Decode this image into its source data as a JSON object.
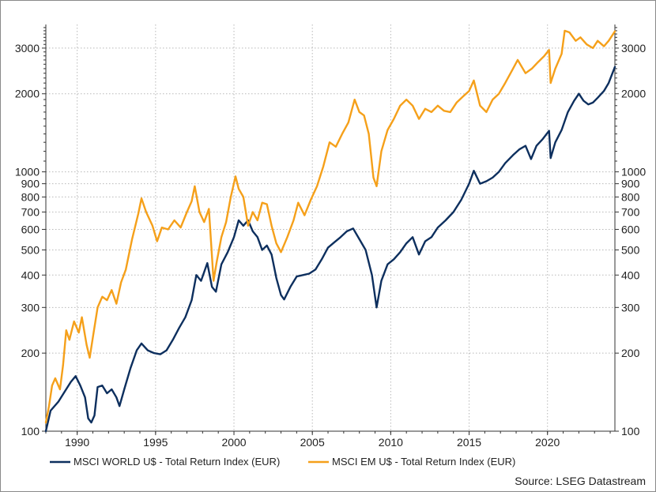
{
  "chart_data": {
    "type": "line",
    "title": "",
    "xlabel": "",
    "ylabel": "",
    "y_scale": "log",
    "xlim": [
      1988.0,
      2024.3
    ],
    "ylim": [
      100,
      3700
    ],
    "grid": true,
    "x_ticks": [
      "1990",
      "1995",
      "2000",
      "2005",
      "2010",
      "2015",
      "2020"
    ],
    "y_ticks": [
      "100",
      "200",
      "300",
      "400",
      "500",
      "600",
      "700",
      "800",
      "900",
      "1000",
      "2000",
      "3000"
    ],
    "legend_position": "bottom-left",
    "series": [
      {
        "name": "MSCI WORLD U$ - Total Return Index (EUR)",
        "color": "#0d2f5e",
        "points": [
          [
            1988.0,
            100
          ],
          [
            1988.3,
            120
          ],
          [
            1988.8,
            130
          ],
          [
            1989.2,
            142
          ],
          [
            1989.6,
            155
          ],
          [
            1989.9,
            163
          ],
          [
            1990.2,
            150
          ],
          [
            1990.5,
            135
          ],
          [
            1990.7,
            112
          ],
          [
            1990.9,
            108
          ],
          [
            1991.1,
            115
          ],
          [
            1991.3,
            148
          ],
          [
            1991.6,
            150
          ],
          [
            1991.9,
            140
          ],
          [
            1992.2,
            145
          ],
          [
            1992.5,
            135
          ],
          [
            1992.7,
            125
          ],
          [
            1993.0,
            145
          ],
          [
            1993.4,
            175
          ],
          [
            1993.8,
            205
          ],
          [
            1994.1,
            218
          ],
          [
            1994.5,
            205
          ],
          [
            1994.9,
            200
          ],
          [
            1995.3,
            198
          ],
          [
            1995.7,
            205
          ],
          [
            1996.1,
            225
          ],
          [
            1996.5,
            250
          ],
          [
            1996.9,
            275
          ],
          [
            1997.3,
            320
          ],
          [
            1997.6,
            400
          ],
          [
            1997.9,
            380
          ],
          [
            1998.3,
            445
          ],
          [
            1998.6,
            360
          ],
          [
            1998.85,
            345
          ],
          [
            1999.2,
            440
          ],
          [
            1999.6,
            490
          ],
          [
            2000.0,
            560
          ],
          [
            2000.3,
            650
          ],
          [
            2000.6,
            620
          ],
          [
            2000.9,
            650
          ],
          [
            2001.2,
            590
          ],
          [
            2001.5,
            560
          ],
          [
            2001.8,
            500
          ],
          [
            2002.1,
            520
          ],
          [
            2002.4,
            480
          ],
          [
            2002.7,
            390
          ],
          [
            2003.0,
            335
          ],
          [
            2003.2,
            322
          ],
          [
            2003.6,
            360
          ],
          [
            2004.0,
            395
          ],
          [
            2004.4,
            400
          ],
          [
            2004.8,
            405
          ],
          [
            2005.2,
            420
          ],
          [
            2005.6,
            460
          ],
          [
            2006.0,
            510
          ],
          [
            2006.4,
            535
          ],
          [
            2006.8,
            560
          ],
          [
            2007.2,
            590
          ],
          [
            2007.6,
            605
          ],
          [
            2008.0,
            550
          ],
          [
            2008.4,
            500
          ],
          [
            2008.8,
            400
          ],
          [
            2009.1,
            300
          ],
          [
            2009.4,
            380
          ],
          [
            2009.8,
            440
          ],
          [
            2010.2,
            460
          ],
          [
            2010.6,
            490
          ],
          [
            2011.0,
            530
          ],
          [
            2011.4,
            560
          ],
          [
            2011.8,
            480
          ],
          [
            2012.2,
            540
          ],
          [
            2012.6,
            560
          ],
          [
            2013.0,
            610
          ],
          [
            2013.5,
            650
          ],
          [
            2014.0,
            700
          ],
          [
            2014.5,
            780
          ],
          [
            2015.0,
            900
          ],
          [
            2015.3,
            1010
          ],
          [
            2015.7,
            900
          ],
          [
            2016.1,
            920
          ],
          [
            2016.5,
            950
          ],
          [
            2016.9,
            1000
          ],
          [
            2017.3,
            1080
          ],
          [
            2017.8,
            1160
          ],
          [
            2018.2,
            1220
          ],
          [
            2018.6,
            1260
          ],
          [
            2018.95,
            1120
          ],
          [
            2019.3,
            1260
          ],
          [
            2019.7,
            1340
          ],
          [
            2020.1,
            1440
          ],
          [
            2020.2,
            1130
          ],
          [
            2020.5,
            1300
          ],
          [
            2020.9,
            1450
          ],
          [
            2021.3,
            1700
          ],
          [
            2021.7,
            1880
          ],
          [
            2022.0,
            2000
          ],
          [
            2022.3,
            1880
          ],
          [
            2022.6,
            1820
          ],
          [
            2022.9,
            1850
          ],
          [
            2023.2,
            1930
          ],
          [
            2023.6,
            2050
          ],
          [
            2023.9,
            2200
          ],
          [
            2024.3,
            2540
          ]
        ]
      },
      {
        "name": "MSCI EM U$ - Total Return Index (EUR)",
        "color": "#f5a01a",
        "points": [
          [
            1988.0,
            108
          ],
          [
            1988.2,
            125
          ],
          [
            1988.4,
            150
          ],
          [
            1988.6,
            160
          ],
          [
            1988.9,
            145
          ],
          [
            1989.1,
            180
          ],
          [
            1989.3,
            245
          ],
          [
            1989.5,
            225
          ],
          [
            1989.8,
            265
          ],
          [
            1990.1,
            240
          ],
          [
            1990.3,
            275
          ],
          [
            1990.6,
            215
          ],
          [
            1990.8,
            192
          ],
          [
            1991.0,
            230
          ],
          [
            1991.3,
            300
          ],
          [
            1991.6,
            330
          ],
          [
            1991.9,
            320
          ],
          [
            1992.2,
            350
          ],
          [
            1992.5,
            310
          ],
          [
            1992.8,
            375
          ],
          [
            1993.1,
            420
          ],
          [
            1993.5,
            550
          ],
          [
            1993.9,
            690
          ],
          [
            1994.1,
            790
          ],
          [
            1994.4,
            700
          ],
          [
            1994.8,
            620
          ],
          [
            1995.1,
            540
          ],
          [
            1995.4,
            610
          ],
          [
            1995.8,
            600
          ],
          [
            1996.2,
            650
          ],
          [
            1996.6,
            610
          ],
          [
            1997.0,
            700
          ],
          [
            1997.3,
            770
          ],
          [
            1997.5,
            880
          ],
          [
            1997.8,
            700
          ],
          [
            1998.1,
            640
          ],
          [
            1998.4,
            720
          ],
          [
            1998.7,
            380
          ],
          [
            1998.9,
            450
          ],
          [
            1999.2,
            560
          ],
          [
            1999.5,
            640
          ],
          [
            1999.8,
            800
          ],
          [
            2000.1,
            960
          ],
          [
            2000.3,
            860
          ],
          [
            2000.6,
            800
          ],
          [
            2000.9,
            620
          ],
          [
            2001.2,
            700
          ],
          [
            2001.5,
            650
          ],
          [
            2001.8,
            760
          ],
          [
            2002.1,
            750
          ],
          [
            2002.4,
            620
          ],
          [
            2002.7,
            530
          ],
          [
            2003.0,
            490
          ],
          [
            2003.4,
            560
          ],
          [
            2003.8,
            650
          ],
          [
            2004.1,
            760
          ],
          [
            2004.5,
            680
          ],
          [
            2004.9,
            780
          ],
          [
            2005.3,
            880
          ],
          [
            2005.7,
            1050
          ],
          [
            2006.1,
            1300
          ],
          [
            2006.5,
            1250
          ],
          [
            2006.9,
            1400
          ],
          [
            2007.3,
            1550
          ],
          [
            2007.7,
            1900
          ],
          [
            2008.0,
            1700
          ],
          [
            2008.3,
            1650
          ],
          [
            2008.6,
            1400
          ],
          [
            2008.9,
            950
          ],
          [
            2009.1,
            880
          ],
          [
            2009.4,
            1200
          ],
          [
            2009.8,
            1450
          ],
          [
            2010.2,
            1600
          ],
          [
            2010.6,
            1800
          ],
          [
            2011.0,
            1900
          ],
          [
            2011.4,
            1800
          ],
          [
            2011.8,
            1600
          ],
          [
            2012.2,
            1750
          ],
          [
            2012.6,
            1700
          ],
          [
            2013.0,
            1800
          ],
          [
            2013.4,
            1720
          ],
          [
            2013.8,
            1700
          ],
          [
            2014.2,
            1850
          ],
          [
            2014.6,
            1950
          ],
          [
            2015.0,
            2050
          ],
          [
            2015.3,
            2250
          ],
          [
            2015.7,
            1800
          ],
          [
            2016.1,
            1700
          ],
          [
            2016.5,
            1900
          ],
          [
            2016.9,
            2000
          ],
          [
            2017.3,
            2200
          ],
          [
            2017.8,
            2500
          ],
          [
            2018.1,
            2700
          ],
          [
            2018.6,
            2400
          ],
          [
            2019.0,
            2500
          ],
          [
            2019.4,
            2650
          ],
          [
            2019.8,
            2800
          ],
          [
            2020.1,
            2950
          ],
          [
            2020.2,
            2200
          ],
          [
            2020.5,
            2500
          ],
          [
            2020.9,
            2850
          ],
          [
            2021.1,
            3500
          ],
          [
            2021.4,
            3450
          ],
          [
            2021.8,
            3200
          ],
          [
            2022.1,
            3300
          ],
          [
            2022.5,
            3100
          ],
          [
            2022.9,
            3000
          ],
          [
            2023.2,
            3200
          ],
          [
            2023.6,
            3050
          ],
          [
            2023.9,
            3200
          ],
          [
            2024.3,
            3480
          ]
        ]
      }
    ]
  },
  "source_text": "Source: LSEG Datastream"
}
